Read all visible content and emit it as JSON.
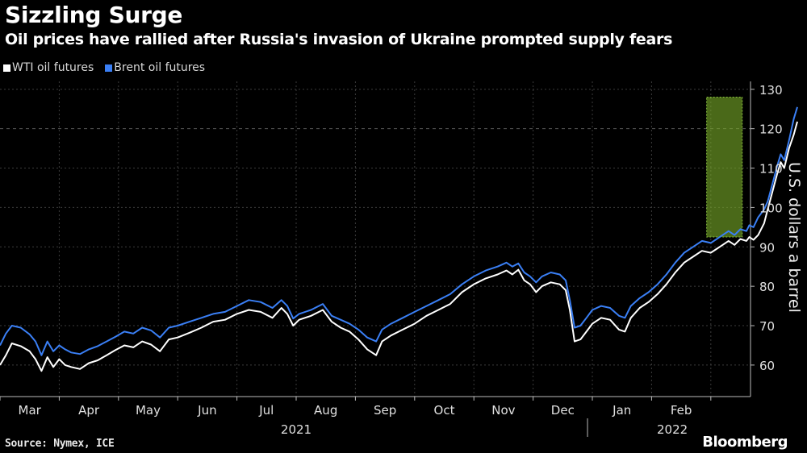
{
  "header": {
    "title": "Sizzling Surge",
    "subtitle": "Oil prices have rallied after Russia's invasion of Ukraine prompted supply fears"
  },
  "legend": {
    "wti_label": "WTI oil futures",
    "brent_label": "Brent oil futures"
  },
  "colors": {
    "wti": "#ffffff",
    "brent": "#3a7ff5",
    "highlight": "#8cc63f",
    "background": "#000000"
  },
  "footer": {
    "source": "Source: Nymex, ICE",
    "brand": "Bloomberg"
  },
  "chart_data": {
    "type": "line",
    "title": "Sizzling Surge",
    "subtitle": "Oil prices have rallied after Russia's invasion of Ukraine prompted supply fears",
    "ylabel": "U.S. dollars a barrel",
    "ylim": [
      52,
      132
    ],
    "yticks": [
      60,
      70,
      80,
      90,
      100,
      110,
      120,
      130
    ],
    "reference_line": 120,
    "x_start": 0,
    "x_end": 12.67,
    "month_ticks": [
      {
        "label": "Mar",
        "x": 0.5
      },
      {
        "label": "Apr",
        "x": 1.5
      },
      {
        "label": "May",
        "x": 2.5
      },
      {
        "label": "Jun",
        "x": 3.5
      },
      {
        "label": "Jul",
        "x": 4.5
      },
      {
        "label": "Aug",
        "x": 5.5
      },
      {
        "label": "Sep",
        "x": 6.5
      },
      {
        "label": "Oct",
        "x": 7.5
      },
      {
        "label": "Nov",
        "x": 8.5
      },
      {
        "label": "Dec",
        "x": 9.5
      },
      {
        "label": "Jan",
        "x": 10.5
      },
      {
        "label": "Feb",
        "x": 11.5
      }
    ],
    "years": [
      {
        "label": "2021",
        "x": 5.0
      },
      {
        "label": "2022",
        "x": 11.35
      }
    ],
    "year_divider_x": 10.0,
    "highlight_range": {
      "x": [
        11.93,
        12.53
      ],
      "y": [
        92.5,
        128
      ]
    },
    "series": [
      {
        "name": "WTI oil futures",
        "color": "#ffffff",
        "points": [
          [
            0.0,
            60.0
          ],
          [
            0.1,
            62.5
          ],
          [
            0.2,
            65.5
          ],
          [
            0.35,
            64.8
          ],
          [
            0.5,
            63.5
          ],
          [
            0.6,
            61.5
          ],
          [
            0.7,
            58.5
          ],
          [
            0.8,
            62.0
          ],
          [
            0.9,
            59.5
          ],
          [
            1.0,
            61.5
          ],
          [
            1.1,
            60.0
          ],
          [
            1.2,
            59.5
          ],
          [
            1.35,
            59.0
          ],
          [
            1.5,
            60.5
          ],
          [
            1.65,
            61.2
          ],
          [
            1.8,
            62.5
          ],
          [
            1.95,
            63.8
          ],
          [
            2.1,
            65.0
          ],
          [
            2.25,
            64.5
          ],
          [
            2.4,
            66.0
          ],
          [
            2.55,
            65.2
          ],
          [
            2.7,
            63.5
          ],
          [
            2.85,
            66.5
          ],
          [
            3.0,
            67.0
          ],
          [
            3.2,
            68.2
          ],
          [
            3.4,
            69.5
          ],
          [
            3.6,
            71.0
          ],
          [
            3.8,
            71.5
          ],
          [
            4.0,
            73.0
          ],
          [
            4.2,
            74.0
          ],
          [
            4.4,
            73.5
          ],
          [
            4.6,
            72.0
          ],
          [
            4.75,
            74.5
          ],
          [
            4.85,
            73.0
          ],
          [
            4.95,
            70.0
          ],
          [
            5.05,
            71.5
          ],
          [
            5.25,
            72.5
          ],
          [
            5.45,
            74.0
          ],
          [
            5.6,
            71.0
          ],
          [
            5.75,
            69.5
          ],
          [
            5.9,
            68.5
          ],
          [
            6.05,
            66.5
          ],
          [
            6.2,
            64.0
          ],
          [
            6.35,
            62.5
          ],
          [
            6.45,
            66.0
          ],
          [
            6.6,
            67.5
          ],
          [
            6.8,
            69.0
          ],
          [
            7.0,
            70.5
          ],
          [
            7.2,
            72.5
          ],
          [
            7.4,
            74.0
          ],
          [
            7.6,
            75.5
          ],
          [
            7.8,
            78.5
          ],
          [
            8.0,
            80.5
          ],
          [
            8.2,
            82.0
          ],
          [
            8.4,
            83.0
          ],
          [
            8.55,
            84.0
          ],
          [
            8.65,
            83.0
          ],
          [
            8.75,
            84.2
          ],
          [
            8.85,
            81.5
          ],
          [
            8.95,
            80.5
          ],
          [
            9.05,
            78.5
          ],
          [
            9.15,
            80.0
          ],
          [
            9.3,
            81.0
          ],
          [
            9.45,
            80.5
          ],
          [
            9.55,
            79.0
          ],
          [
            9.62,
            74.0
          ],
          [
            9.7,
            66.0
          ],
          [
            9.8,
            66.5
          ],
          [
            9.9,
            68.5
          ],
          [
            10.0,
            70.5
          ],
          [
            10.15,
            72.0
          ],
          [
            10.3,
            71.5
          ],
          [
            10.45,
            69.0
          ],
          [
            10.55,
            68.5
          ],
          [
            10.65,
            72.0
          ],
          [
            10.8,
            74.5
          ],
          [
            10.95,
            76.0
          ],
          [
            11.1,
            78.0
          ],
          [
            11.25,
            80.5
          ],
          [
            11.4,
            83.5
          ],
          [
            11.55,
            86.0
          ],
          [
            11.7,
            87.5
          ],
          [
            11.85,
            89.0
          ],
          [
            12.0,
            88.5
          ],
          [
            12.15,
            90.0
          ],
          [
            12.3,
            91.5
          ],
          [
            12.4,
            90.5
          ],
          [
            12.5,
            92.0
          ],
          [
            12.6,
            91.5
          ],
          [
            12.65,
            92.5
          ],
          [
            12.72,
            91.8
          ],
          [
            12.8,
            93.0
          ],
          [
            12.9,
            96.0
          ],
          [
            12.96,
            99.5
          ],
          [
            13.04,
            104.0
          ],
          [
            13.12,
            108.5
          ],
          [
            13.18,
            111.5
          ],
          [
            13.24,
            110.0
          ],
          [
            13.32,
            115.0
          ],
          [
            13.4,
            118.5
          ],
          [
            13.46,
            121.8
          ]
        ]
      },
      {
        "name": "Brent oil futures",
        "color": "#3a7ff5",
        "points": [
          [
            0.0,
            65.0
          ],
          [
            0.1,
            68.0
          ],
          [
            0.2,
            70.0
          ],
          [
            0.35,
            69.5
          ],
          [
            0.5,
            67.8
          ],
          [
            0.6,
            66.0
          ],
          [
            0.7,
            62.5
          ],
          [
            0.8,
            66.0
          ],
          [
            0.9,
            63.5
          ],
          [
            1.0,
            65.0
          ],
          [
            1.1,
            64.0
          ],
          [
            1.2,
            63.2
          ],
          [
            1.35,
            62.8
          ],
          [
            1.5,
            64.0
          ],
          [
            1.65,
            64.8
          ],
          [
            1.8,
            66.0
          ],
          [
            1.95,
            67.2
          ],
          [
            2.1,
            68.5
          ],
          [
            2.25,
            68.0
          ],
          [
            2.4,
            69.5
          ],
          [
            2.55,
            68.8
          ],
          [
            2.7,
            67.0
          ],
          [
            2.85,
            69.5
          ],
          [
            3.0,
            70.0
          ],
          [
            3.2,
            71.0
          ],
          [
            3.4,
            72.0
          ],
          [
            3.6,
            73.0
          ],
          [
            3.8,
            73.5
          ],
          [
            4.0,
            75.0
          ],
          [
            4.2,
            76.5
          ],
          [
            4.4,
            76.0
          ],
          [
            4.6,
            74.5
          ],
          [
            4.75,
            76.5
          ],
          [
            4.85,
            75.0
          ],
          [
            4.95,
            71.8
          ],
          [
            5.05,
            73.0
          ],
          [
            5.25,
            74.0
          ],
          [
            5.45,
            75.5
          ],
          [
            5.6,
            72.5
          ],
          [
            5.75,
            71.5
          ],
          [
            5.9,
            70.5
          ],
          [
            6.05,
            69.0
          ],
          [
            6.2,
            67.0
          ],
          [
            6.35,
            66.0
          ],
          [
            6.45,
            69.0
          ],
          [
            6.6,
            70.5
          ],
          [
            6.8,
            72.0
          ],
          [
            7.0,
            73.5
          ],
          [
            7.2,
            75.0
          ],
          [
            7.4,
            76.5
          ],
          [
            7.6,
            78.0
          ],
          [
            7.8,
            80.5
          ],
          [
            8.0,
            82.5
          ],
          [
            8.2,
            84.0
          ],
          [
            8.4,
            85.0
          ],
          [
            8.55,
            86.0
          ],
          [
            8.65,
            85.0
          ],
          [
            8.75,
            85.8
          ],
          [
            8.85,
            83.5
          ],
          [
            8.95,
            82.5
          ],
          [
            9.05,
            81.0
          ],
          [
            9.15,
            82.5
          ],
          [
            9.3,
            83.5
          ],
          [
            9.45,
            83.0
          ],
          [
            9.55,
            81.5
          ],
          [
            9.62,
            76.5
          ],
          [
            9.7,
            69.5
          ],
          [
            9.8,
            70.0
          ],
          [
            9.9,
            72.0
          ],
          [
            10.0,
            74.0
          ],
          [
            10.15,
            75.0
          ],
          [
            10.3,
            74.5
          ],
          [
            10.45,
            72.5
          ],
          [
            10.55,
            72.0
          ],
          [
            10.65,
            75.0
          ],
          [
            10.8,
            77.0
          ],
          [
            10.95,
            78.5
          ],
          [
            11.1,
            80.5
          ],
          [
            11.25,
            83.0
          ],
          [
            11.4,
            86.0
          ],
          [
            11.55,
            88.5
          ],
          [
            11.7,
            90.0
          ],
          [
            11.85,
            91.5
          ],
          [
            12.0,
            91.0
          ],
          [
            12.15,
            92.5
          ],
          [
            12.3,
            94.0
          ],
          [
            12.4,
            93.0
          ],
          [
            12.5,
            94.5
          ],
          [
            12.6,
            94.0
          ],
          [
            12.65,
            95.5
          ],
          [
            12.72,
            95.0
          ],
          [
            12.8,
            97.5
          ],
          [
            12.9,
            99.5
          ],
          [
            12.96,
            101.5
          ],
          [
            13.04,
            106.0
          ],
          [
            13.12,
            110.5
          ],
          [
            13.18,
            113.5
          ],
          [
            13.24,
            112.0
          ],
          [
            13.32,
            117.0
          ],
          [
            13.4,
            122.5
          ],
          [
            13.46,
            125.5
          ]
        ]
      }
    ]
  }
}
